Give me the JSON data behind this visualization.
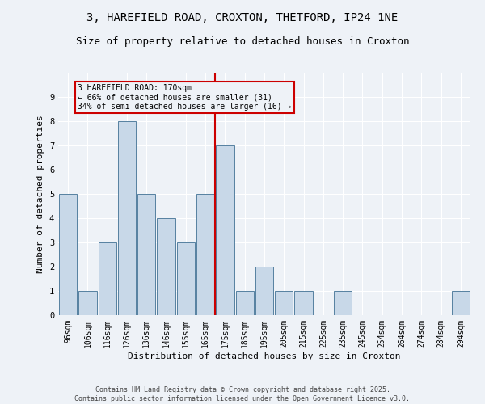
{
  "title": "3, HAREFIELD ROAD, CROXTON, THETFORD, IP24 1NE",
  "subtitle": "Size of property relative to detached houses in Croxton",
  "xlabel": "Distribution of detached houses by size in Croxton",
  "ylabel": "Number of detached properties",
  "categories": [
    "96sqm",
    "106sqm",
    "116sqm",
    "126sqm",
    "136sqm",
    "146sqm",
    "155sqm",
    "165sqm",
    "175sqm",
    "185sqm",
    "195sqm",
    "205sqm",
    "215sqm",
    "225sqm",
    "235sqm",
    "245sqm",
    "254sqm",
    "264sqm",
    "274sqm",
    "284sqm",
    "294sqm"
  ],
  "values": [
    5,
    1,
    3,
    8,
    5,
    4,
    3,
    5,
    7,
    1,
    2,
    1,
    1,
    0,
    1,
    0,
    0,
    0,
    0,
    0,
    1
  ],
  "bar_color": "#c8d8e8",
  "bar_edgecolor": "#5580a0",
  "vline_x": 7.5,
  "vline_color": "#cc0000",
  "annotation_text": "3 HAREFIELD ROAD: 170sqm\n← 66% of detached houses are smaller (31)\n34% of semi-detached houses are larger (16) →",
  "annotation_box_color": "#cc0000",
  "background_color": "#eef2f7",
  "grid_color": "#ffffff",
  "ylim": [
    0,
    10
  ],
  "yticks": [
    0,
    1,
    2,
    3,
    4,
    5,
    6,
    7,
    8,
    9,
    10
  ],
  "footer": "Contains HM Land Registry data © Crown copyright and database right 2025.\nContains public sector information licensed under the Open Government Licence v3.0.",
  "title_fontsize": 10,
  "subtitle_fontsize": 9,
  "tick_fontsize": 7,
  "ylabel_fontsize": 8,
  "xlabel_fontsize": 8,
  "footer_fontsize": 6
}
